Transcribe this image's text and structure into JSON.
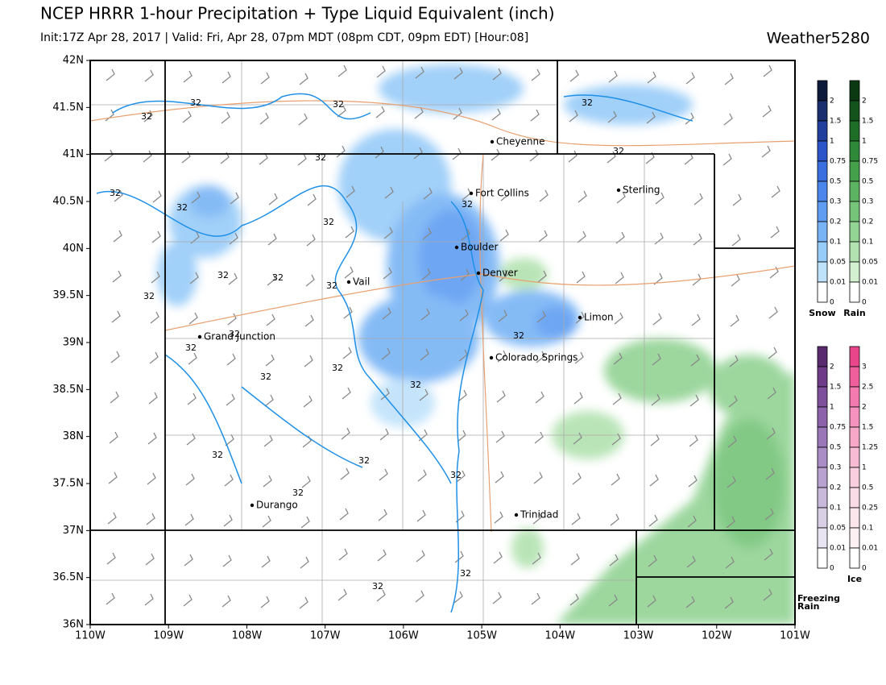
{
  "header": {
    "title": "NCEP HRRR 1-hour Precipitation + Type Liquid Equivalent (inch)",
    "subtitle": "Init:17Z Apr 28, 2017 | Valid: Fri, Apr 28, 07pm MDT (08pm CDT, 09pm EDT) [Hour:08]",
    "brand": "Weather5280"
  },
  "map": {
    "lat_ticks": [
      "42N",
      "41.5N",
      "41N",
      "40.5N",
      "40N",
      "39.5N",
      "39N",
      "38.5N",
      "38N",
      "37.5N",
      "37N",
      "36.5N",
      "36N"
    ],
    "lon_ticks": [
      "110W",
      "109W",
      "108W",
      "107W",
      "106W",
      "105W",
      "104W",
      "103W",
      "102W",
      "101W"
    ],
    "cities": [
      "Cheyenne",
      "Fort Collins",
      "Sterling",
      "Boulder",
      "Denver",
      "Vail",
      "Limon",
      "Grand Junction",
      "Colorado Springs",
      "Durango",
      "Trinidad"
    ],
    "contour_labels": [
      "32",
      "32",
      "32",
      "32",
      "32",
      "32",
      "32",
      "32",
      "32",
      "32",
      "32",
      "32",
      "32",
      "32",
      "32",
      "32",
      "32",
      "32",
      "32",
      "32",
      "32",
      "32",
      "32",
      "32",
      "32",
      "32"
    ]
  },
  "legend": [
    {
      "title": "Snow",
      "labels": [
        "2",
        "1.5",
        "1",
        "0.75",
        "0.5",
        "0.3",
        "0.2",
        "0.1",
        "0.05",
        "0.01",
        "0"
      ],
      "colors": [
        "#0d1a3a",
        "#1a2f6e",
        "#233f9e",
        "#2b55c9",
        "#3a6fe0",
        "#4a86ec",
        "#5e9df2",
        "#78b4f5",
        "#97cbf8",
        "#bfe2fb",
        "#ffffff"
      ]
    },
    {
      "title": "Rain",
      "labels": [
        "2",
        "1.5",
        "1",
        "0.75",
        "0.5",
        "0.3",
        "0.2",
        "0.1",
        "0.05",
        "0.01",
        "0"
      ],
      "colors": [
        "#0b3a12",
        "#14541c",
        "#1f6e28",
        "#2e8a38",
        "#45a04c",
        "#5cb462",
        "#76c479",
        "#93d394",
        "#b2e2b0",
        "#d3f0d0",
        "#ffffff"
      ]
    },
    {
      "title": "Freezing Rain",
      "labels": [
        "2",
        "1.5",
        "1",
        "0.75",
        "0.5",
        "0.3",
        "0.2",
        "0.1",
        "0.05",
        "0.01",
        "0"
      ],
      "colors": [
        "#5a2a6e",
        "#6d3b87",
        "#7e4f9b",
        "#8c63ab",
        "#9a78b8",
        "#a98dc4",
        "#b8a2cf",
        "#c8b9da",
        "#d8cfe5",
        "#e9e4f1",
        "#ffffff"
      ]
    },
    {
      "title": "Ice",
      "labels": [
        "3",
        "2.5",
        "2",
        "1.5",
        "1.25",
        "1",
        "0.5",
        "0.25",
        "0.1",
        "0.01",
        "0"
      ],
      "colors": [
        "#e9458a",
        "#ee5f9c",
        "#f27aae",
        "#f593be",
        "#f7a8c9",
        "#f8bbd4",
        "#f9cede",
        "#fadce6",
        "#fbe6ec",
        "#fcf0f3",
        "#ffffff"
      ]
    }
  ]
}
